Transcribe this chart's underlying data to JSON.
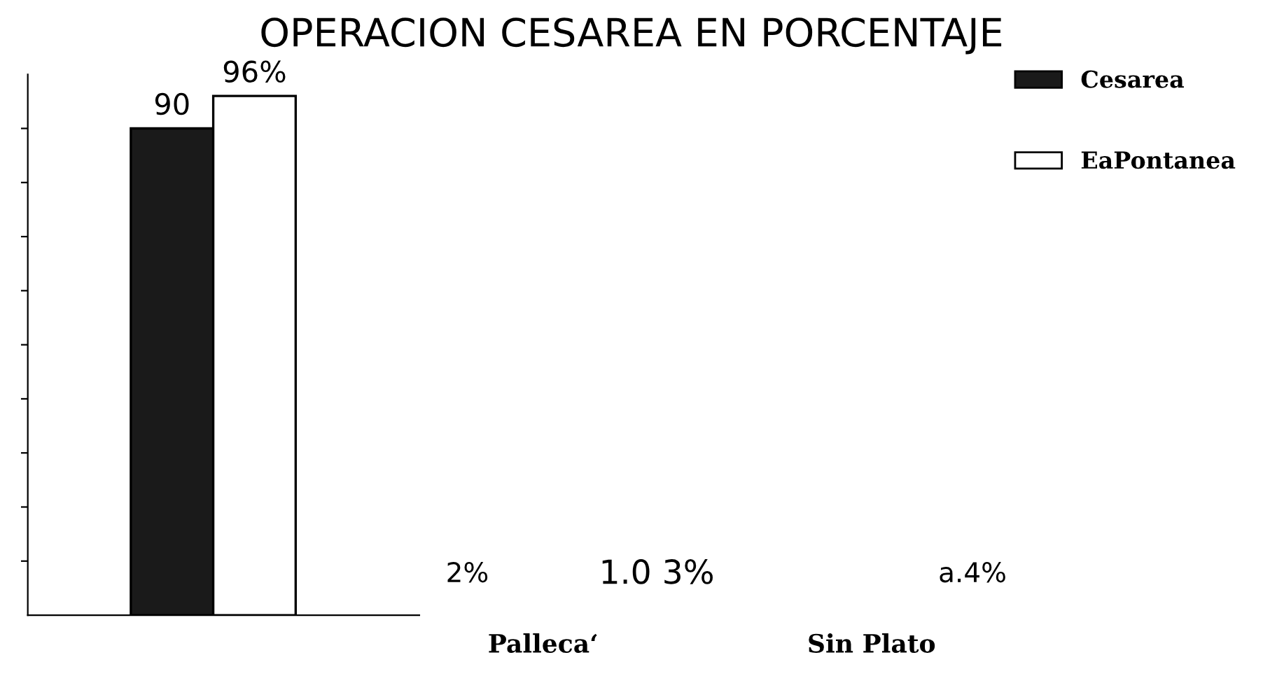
{
  "chart_data": {
    "type": "bar",
    "title": "OPERACION CESAREA EN PORCENTAJE",
    "categories": [
      null
    ],
    "series": [
      {
        "name": "Cesarea",
        "color": "#1a1a1a",
        "values": [
          90
        ],
        "value_labels": [
          "90"
        ]
      },
      {
        "name": "EaPontanea",
        "color": "#ffffff",
        "values": [
          96
        ],
        "value_labels": [
          "96%"
        ]
      }
    ],
    "ylim": [
      0,
      100
    ],
    "yticks": [
      {
        "value": 10,
        "label": null
      },
      {
        "value": 20,
        "label": null
      },
      {
        "value": 30,
        "label": null
      },
      {
        "value": 40,
        "label": null
      },
      {
        "value": 50,
        "label": null
      },
      {
        "value": 60,
        "label": null
      },
      {
        "value": 70,
        "label": null
      },
      {
        "value": 80,
        "label": null
      },
      {
        "value": 90,
        "label": null
      }
    ],
    "grid": false,
    "legend": "right",
    "annotations": [
      "2%",
      "1.0 3%",
      "a.4%",
      "Palleca‘",
      "Sin Plato"
    ]
  }
}
